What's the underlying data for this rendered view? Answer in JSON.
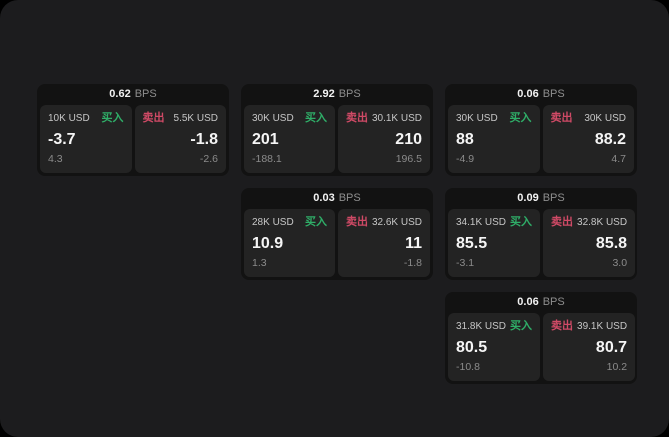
{
  "page": {
    "background_color": "#000000",
    "panel_color": "#1c1c1e"
  },
  "colors": {
    "buy_green": "#2fae68",
    "sell_red": "#d04a66",
    "card_bg": "#121212",
    "tile_bg": "#232323",
    "primary_text": "#f5f5f5",
    "muted_text": "#8b8b8b"
  },
  "labels": {
    "bps_unit": "BPS",
    "buy": "买入",
    "sell": "卖出"
  },
  "cards": [
    {
      "bps": "0.62",
      "grid": {
        "row": 1,
        "col": 1
      },
      "buy": {
        "amount": "10K USD",
        "price": "-3.7",
        "change": "4.3"
      },
      "sell": {
        "amount": "5.5K USD",
        "price": "-1.8",
        "change": "-2.6"
      }
    },
    {
      "bps": "2.92",
      "grid": {
        "row": 1,
        "col": 2
      },
      "buy": {
        "amount": "30K USD",
        "price": "201",
        "change": "-188.1"
      },
      "sell": {
        "amount": "30.1K USD",
        "price": "210",
        "change": "196.5"
      }
    },
    {
      "bps": "0.06",
      "grid": {
        "row": 1,
        "col": 3
      },
      "buy": {
        "amount": "30K USD",
        "price": "88",
        "change": "-4.9"
      },
      "sell": {
        "amount": "30K USD",
        "price": "88.2",
        "change": "4.7"
      }
    },
    {
      "bps": "0.03",
      "grid": {
        "row": 2,
        "col": 2
      },
      "buy": {
        "amount": "28K USD",
        "price": "10.9",
        "change": "1.3"
      },
      "sell": {
        "amount": "32.6K USD",
        "price": "11",
        "change": "-1.8"
      }
    },
    {
      "bps": "0.09",
      "grid": {
        "row": 2,
        "col": 3
      },
      "buy": {
        "amount": "34.1K USD",
        "price": "85.5",
        "change": "-3.1"
      },
      "sell": {
        "amount": "32.8K USD",
        "price": "85.8",
        "change": "3.0"
      }
    },
    {
      "bps": "0.06",
      "grid": {
        "row": 3,
        "col": 3
      },
      "buy": {
        "amount": "31.8K USD",
        "price": "80.5",
        "change": "-10.8"
      },
      "sell": {
        "amount": "39.1K USD",
        "price": "80.7",
        "change": "10.2"
      }
    }
  ]
}
